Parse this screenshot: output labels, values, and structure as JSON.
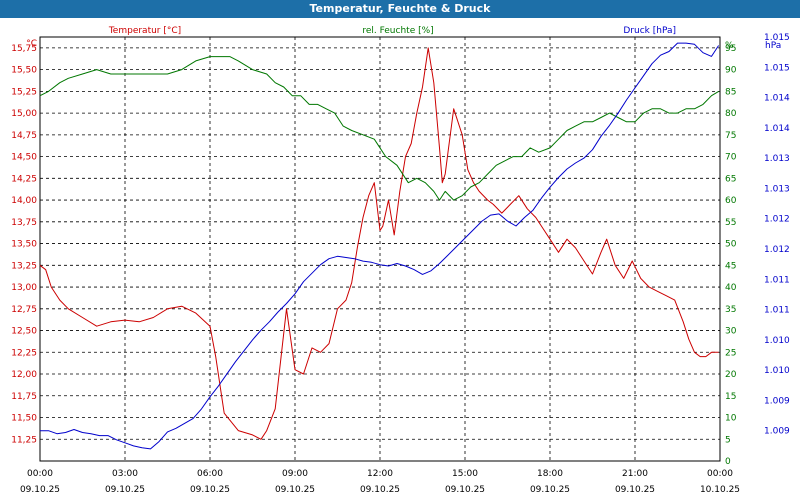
{
  "window": {
    "title": "Temperatur, Feuchte & Druck"
  },
  "colors": {
    "temperature": "#cc0000",
    "humidity": "#007700",
    "pressure": "#0000cc",
    "titlebar": "#1d6fa8"
  },
  "chart_data": {
    "type": "line",
    "title": "Temperatur, Feuchte & Druck",
    "grid": true,
    "x_ticks": [
      {
        "time": "00:00",
        "date": "09.10.25"
      },
      {
        "time": "03:00",
        "date": "09.10.25"
      },
      {
        "time": "06:00",
        "date": "09.10.25"
      },
      {
        "time": "09:00",
        "date": "09.10.25"
      },
      {
        "time": "12:00",
        "date": "09.10.25"
      },
      {
        "time": "15:00",
        "date": "09.10.25"
      },
      {
        "time": "18:00",
        "date": "09.10.25"
      },
      {
        "time": "21:00",
        "date": "09.10.25"
      },
      {
        "time": "00:00",
        "date": "10.10.25"
      }
    ],
    "x_range_hours": [
      0,
      24
    ],
    "axes": {
      "temperature": {
        "label": "Temperatur [°C]",
        "unit": "°C",
        "range": [
          11.0,
          15.875
        ],
        "ticks": [
          "11,25",
          "11,50",
          "11,75",
          "12,00",
          "12,25",
          "12,50",
          "12,75",
          "13,00",
          "13,25",
          "13,50",
          "13,75",
          "14,00",
          "14,25",
          "14,50",
          "14,75",
          "15,00",
          "15,25",
          "15,50",
          "15,75"
        ]
      },
      "humidity": {
        "label": "rel. Feuchte [%]",
        "unit": "%",
        "range": [
          0,
          97.5
        ],
        "ticks": [
          "0",
          "5",
          "10",
          "15",
          "20",
          "25",
          "30",
          "35",
          "40",
          "45",
          "50",
          "55",
          "60",
          "65",
          "70",
          "75",
          "80",
          "85",
          "90",
          "95"
        ]
      },
      "pressure": {
        "label": "Druck [hPa]",
        "unit": "hPa",
        "range": [
          1008.5,
          1015.5
        ],
        "ticks": [
          "1.009",
          "1.009",
          "1.010",
          "1.010",
          "1.011",
          "1.011",
          "1.012",
          "1.012",
          "1.013",
          "1.013",
          "1.014",
          "1.014",
          "1.015",
          "1.015"
        ]
      }
    },
    "series": [
      {
        "name": "Temperatur [°C]",
        "axis": "temperature",
        "color": "#cc0000",
        "x": [
          0,
          0.2,
          0.4,
          0.7,
          1,
          1.5,
          2,
          2.5,
          3,
          3.5,
          4,
          4.5,
          5,
          5.5,
          6,
          6.2,
          6.5,
          7,
          7.5,
          7.8,
          8,
          8.3,
          8.7,
          9,
          9.3,
          9.6,
          9.9,
          10.2,
          10.5,
          10.8,
          11,
          11.2,
          11.4,
          11.6,
          11.8,
          12,
          12.1,
          12.3,
          12.5,
          12.7,
          12.9,
          13.1,
          13.3,
          13.5,
          13.7,
          13.9,
          14.1,
          14.2,
          14.3,
          14.4,
          14.6,
          14.9,
          15.1,
          15.3,
          15.5,
          15.8,
          16,
          16.3,
          16.6,
          16.9,
          17.2,
          17.5,
          17.8,
          18,
          18.3,
          18.6,
          18.9,
          19.2,
          19.5,
          19.8,
          20,
          20.3,
          20.6,
          20.9,
          21.2,
          21.5,
          21.8,
          22.1,
          22.4,
          22.7,
          22.9,
          23.1,
          23.3,
          23.5,
          23.7,
          23.95
        ],
        "values": [
          13.25,
          13.2,
          13.0,
          12.85,
          12.75,
          12.65,
          12.55,
          12.6,
          12.62,
          12.6,
          12.65,
          12.75,
          12.78,
          12.7,
          12.55,
          12.2,
          11.55,
          11.35,
          11.3,
          11.25,
          11.35,
          11.6,
          12.75,
          12.05,
          12.0,
          12.3,
          12.25,
          12.35,
          12.75,
          12.85,
          13.05,
          13.45,
          13.8,
          14.05,
          14.2,
          13.65,
          13.7,
          14.0,
          13.6,
          14.1,
          14.5,
          14.65,
          15.0,
          15.3,
          15.75,
          15.35,
          14.6,
          14.2,
          14.3,
          14.55,
          15.05,
          14.75,
          14.35,
          14.2,
          14.1,
          14.0,
          13.95,
          13.85,
          13.95,
          14.05,
          13.9,
          13.8,
          13.65,
          13.55,
          13.4,
          13.55,
          13.45,
          13.3,
          13.15,
          13.4,
          13.55,
          13.25,
          13.1,
          13.3,
          13.1,
          13.0,
          12.95,
          12.9,
          12.85,
          12.6,
          12.4,
          12.25,
          12.2,
          12.2,
          12.25,
          12.25
        ]
      },
      {
        "name": "rel. Feuchte [%]",
        "axis": "humidity",
        "color": "#007700",
        "x": [
          0,
          0.3,
          0.7,
          1,
          1.5,
          2,
          2.5,
          3,
          3.5,
          4,
          4.5,
          5,
          5.5,
          6,
          6.3,
          6.7,
          7,
          7.5,
          8,
          8.3,
          8.6,
          8.9,
          9.2,
          9.5,
          9.8,
          10.1,
          10.4,
          10.7,
          11,
          11.4,
          11.8,
          12.2,
          12.6,
          13,
          13.3,
          13.6,
          13.9,
          14.1,
          14.3,
          14.6,
          14.9,
          15.2,
          15.5,
          15.8,
          16.1,
          16.4,
          16.7,
          17,
          17.3,
          17.6,
          18,
          18.3,
          18.6,
          18.9,
          19.2,
          19.5,
          19.8,
          20.1,
          20.4,
          20.7,
          21,
          21.3,
          21.6,
          21.9,
          22.2,
          22.5,
          22.8,
          23.1,
          23.4,
          23.7,
          23.95
        ],
        "values": [
          84,
          85,
          87,
          88,
          89,
          90,
          89,
          89,
          89,
          89,
          89,
          90,
          92,
          93,
          93,
          93,
          92,
          90,
          89,
          87,
          86,
          84,
          84,
          82,
          82,
          81,
          80,
          77,
          76,
          75,
          74,
          70,
          68,
          64,
          65,
          64,
          62,
          60,
          62,
          60,
          61,
          63,
          64,
          66,
          68,
          69,
          70,
          70,
          72,
          71,
          72,
          74,
          76,
          77,
          78,
          78,
          79,
          80,
          79,
          78,
          78,
          80,
          81,
          81,
          80,
          80,
          81,
          81,
          82,
          84,
          85
        ]
      },
      {
        "name": "Druck [hPa]",
        "axis": "pressure",
        "color": "#0000cc",
        "x": [
          0,
          0.3,
          0.6,
          0.9,
          1.2,
          1.5,
          1.8,
          2.1,
          2.4,
          2.7,
          3,
          3.3,
          3.6,
          3.9,
          4.2,
          4.5,
          4.8,
          5.1,
          5.4,
          5.7,
          6,
          6.3,
          6.6,
          6.9,
          7.2,
          7.5,
          7.8,
          8.1,
          8.4,
          8.7,
          9,
          9.3,
          9.6,
          9.9,
          10.2,
          10.5,
          10.8,
          11.1,
          11.4,
          11.7,
          12,
          12.3,
          12.6,
          12.9,
          13.2,
          13.5,
          13.8,
          14.1,
          14.4,
          14.7,
          15,
          15.3,
          15.6,
          15.9,
          16.2,
          16.5,
          16.8,
          17.1,
          17.4,
          17.7,
          18,
          18.3,
          18.6,
          18.9,
          19.2,
          19.5,
          19.8,
          20.1,
          20.4,
          20.7,
          21,
          21.3,
          21.6,
          21.9,
          22.2,
          22.5,
          22.8,
          23.1,
          23.4,
          23.7,
          23.95
        ],
        "values": [
          1009.0,
          1009.0,
          1008.95,
          1008.97,
          1009.02,
          1008.97,
          1008.95,
          1008.92,
          1008.92,
          1008.85,
          1008.8,
          1008.75,
          1008.72,
          1008.7,
          1008.82,
          1008.98,
          1009.04,
          1009.12,
          1009.2,
          1009.36,
          1009.56,
          1009.74,
          1009.94,
          1010.14,
          1010.32,
          1010.5,
          1010.66,
          1010.8,
          1010.96,
          1011.1,
          1011.26,
          1011.46,
          1011.6,
          1011.74,
          1011.84,
          1011.88,
          1011.86,
          1011.84,
          1011.8,
          1011.78,
          1011.74,
          1011.72,
          1011.76,
          1011.72,
          1011.66,
          1011.58,
          1011.64,
          1011.76,
          1011.9,
          1012.04,
          1012.18,
          1012.32,
          1012.46,
          1012.56,
          1012.58,
          1012.46,
          1012.38,
          1012.52,
          1012.64,
          1012.84,
          1013.02,
          1013.18,
          1013.32,
          1013.42,
          1013.5,
          1013.64,
          1013.86,
          1014.04,
          1014.24,
          1014.46,
          1014.66,
          1014.86,
          1015.06,
          1015.2,
          1015.26,
          1015.4,
          1015.4,
          1015.38,
          1015.24,
          1015.18,
          1015.36
        ]
      }
    ]
  }
}
